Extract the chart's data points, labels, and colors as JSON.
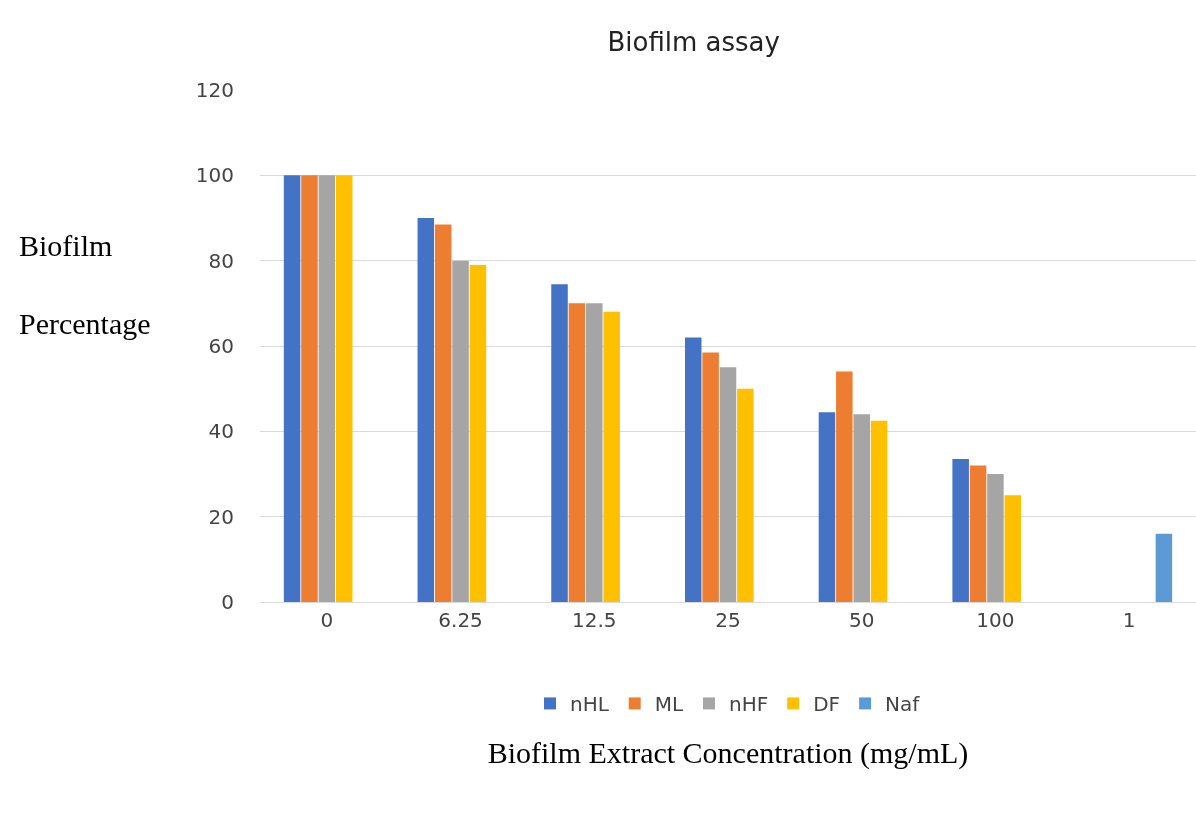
{
  "chart_data": {
    "type": "bar",
    "title": "Biofilm assay",
    "xlabel": "Biofilm Extract Concentration (mg/mL)",
    "ylabel": "Biofilm Percentage",
    "categories": [
      "0",
      "6.25",
      "12.5",
      "25",
      "50",
      "100",
      "1"
    ],
    "series": [
      {
        "name": "nHL",
        "color": "#4472c4",
        "values": [
          100,
          90,
          74.5,
          62,
          44.5,
          33.5,
          null
        ]
      },
      {
        "name": "ML",
        "color": "#ed7d31",
        "values": [
          100,
          88.5,
          70,
          58.5,
          54,
          32,
          null
        ]
      },
      {
        "name": "nHF",
        "color": "#a5a5a5",
        "values": [
          100,
          80,
          70,
          55,
          44,
          30,
          null
        ]
      },
      {
        "name": "DF",
        "color": "#ffc000",
        "values": [
          100,
          79,
          68,
          50,
          42.5,
          25,
          null
        ]
      },
      {
        "name": "Naf",
        "color": "#5b9bd5",
        "values": [
          null,
          null,
          null,
          null,
          null,
          null,
          16
        ]
      }
    ],
    "ylim": [
      0,
      120
    ],
    "yticks": [
      0,
      20,
      40,
      60,
      80,
      100,
      120
    ],
    "grid": "y",
    "legend": "bottom"
  }
}
